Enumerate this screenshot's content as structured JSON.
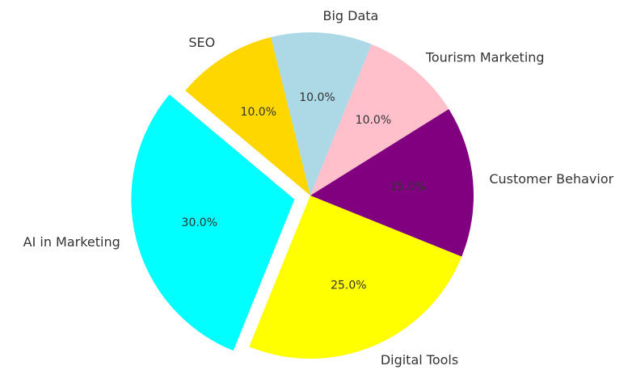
{
  "chart_data": {
    "type": "pie",
    "categories": [
      "AI in Marketing",
      "Digital Tools",
      "Customer Behavior",
      "Tourism Marketing",
      "Big Data",
      "SEO"
    ],
    "values": [
      30,
      25,
      15,
      10,
      10,
      10
    ],
    "value_labels": [
      "30.0%",
      "25.0%",
      "15.0%",
      "10.0%",
      "10.0%",
      "10.0%"
    ],
    "colors": [
      "#00ffff",
      "#ffff00",
      "#800080",
      "#ffc0cb",
      "#add8e6",
      "#ffd700"
    ],
    "explode": [
      0.1,
      0,
      0,
      0,
      0,
      0
    ],
    "startangle": 140
  }
}
